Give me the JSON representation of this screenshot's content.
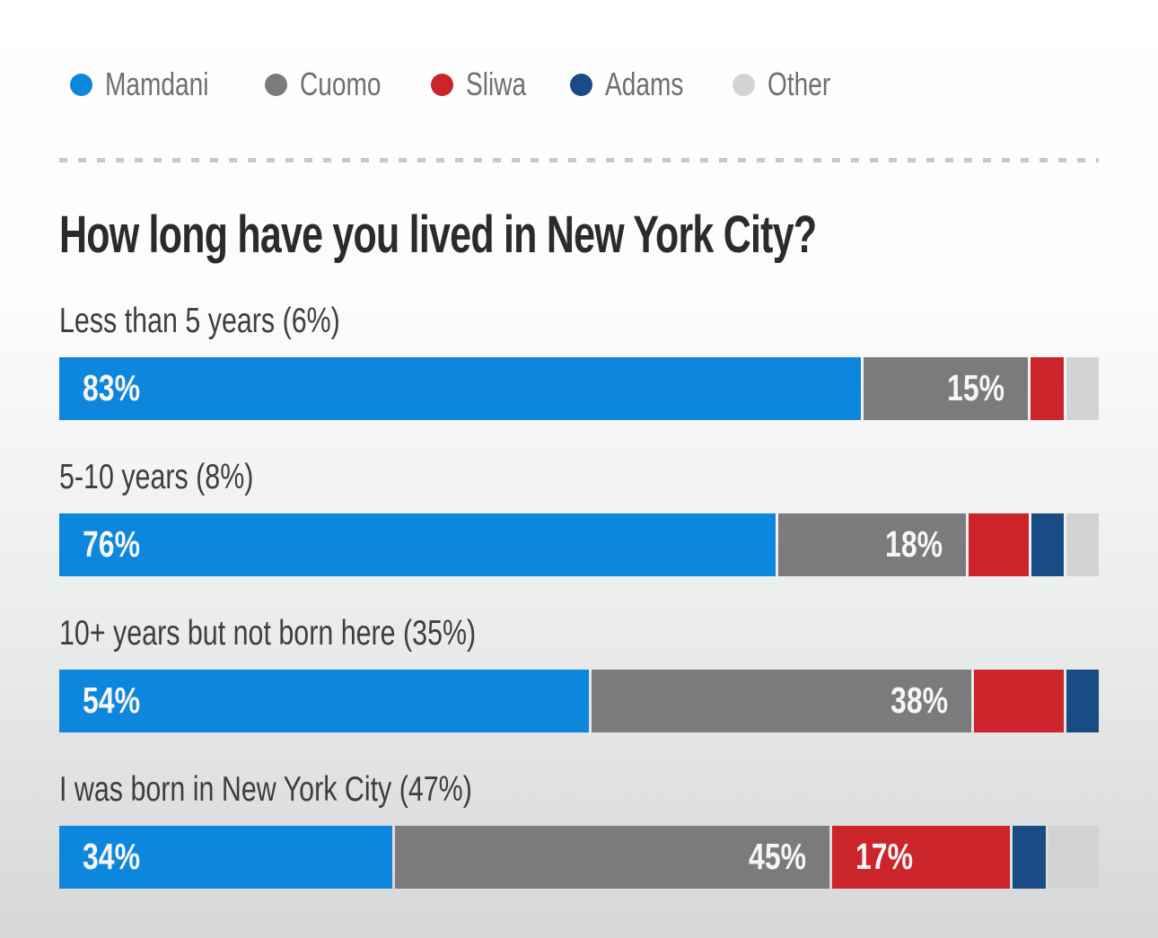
{
  "legend": {
    "items": [
      {
        "label": "Mamdani",
        "color": "#0d86dd"
      },
      {
        "label": "Cuomo",
        "color": "#7b7b7c"
      },
      {
        "label": "Sliwa",
        "color": "#cb242a"
      },
      {
        "label": "Adams",
        "color": "#194c84"
      },
      {
        "label": "Other",
        "color": "#d2d3d4"
      }
    ]
  },
  "chart_data": {
    "type": "bar",
    "orientation": "horizontal",
    "stacked": true,
    "unit": "%",
    "title": "How long have you lived in New York City?",
    "series": [
      "Mamdani",
      "Cuomo",
      "Sliwa",
      "Adams",
      "Other"
    ],
    "colors": {
      "Mamdani": "#0d86dd",
      "Cuomo": "#7b7b7c",
      "Sliwa": "#cb242a",
      "Adams": "#194c84",
      "Other": "#d2d3d4"
    },
    "label_alignments": [
      "left",
      "right",
      "left",
      "left",
      "left"
    ],
    "rows": [
      {
        "label": "Less than 5 years (6%)",
        "group_share": "6%",
        "values": [
          83,
          15,
          1,
          0,
          1
        ],
        "segment_labels": [
          "83%",
          "15%",
          "",
          "",
          ""
        ]
      },
      {
        "label": "5-10 years (8%)",
        "group_share": "8%",
        "values": [
          76,
          18,
          4,
          1,
          1
        ],
        "segment_labels": [
          "76%",
          "18%",
          "",
          "",
          ""
        ]
      },
      {
        "label": "10+ years but not born here (35%)",
        "group_share": "35%",
        "values": [
          54,
          38,
          7,
          1,
          0
        ],
        "segment_labels": [
          "54%",
          "38%",
          "",
          "",
          ""
        ]
      },
      {
        "label": "I was born in New York City (47%)",
        "group_share": "47%",
        "values": [
          34,
          45,
          17,
          1,
          3
        ],
        "segment_labels": [
          "34%",
          "45%",
          "17%",
          "",
          ""
        ]
      }
    ]
  }
}
